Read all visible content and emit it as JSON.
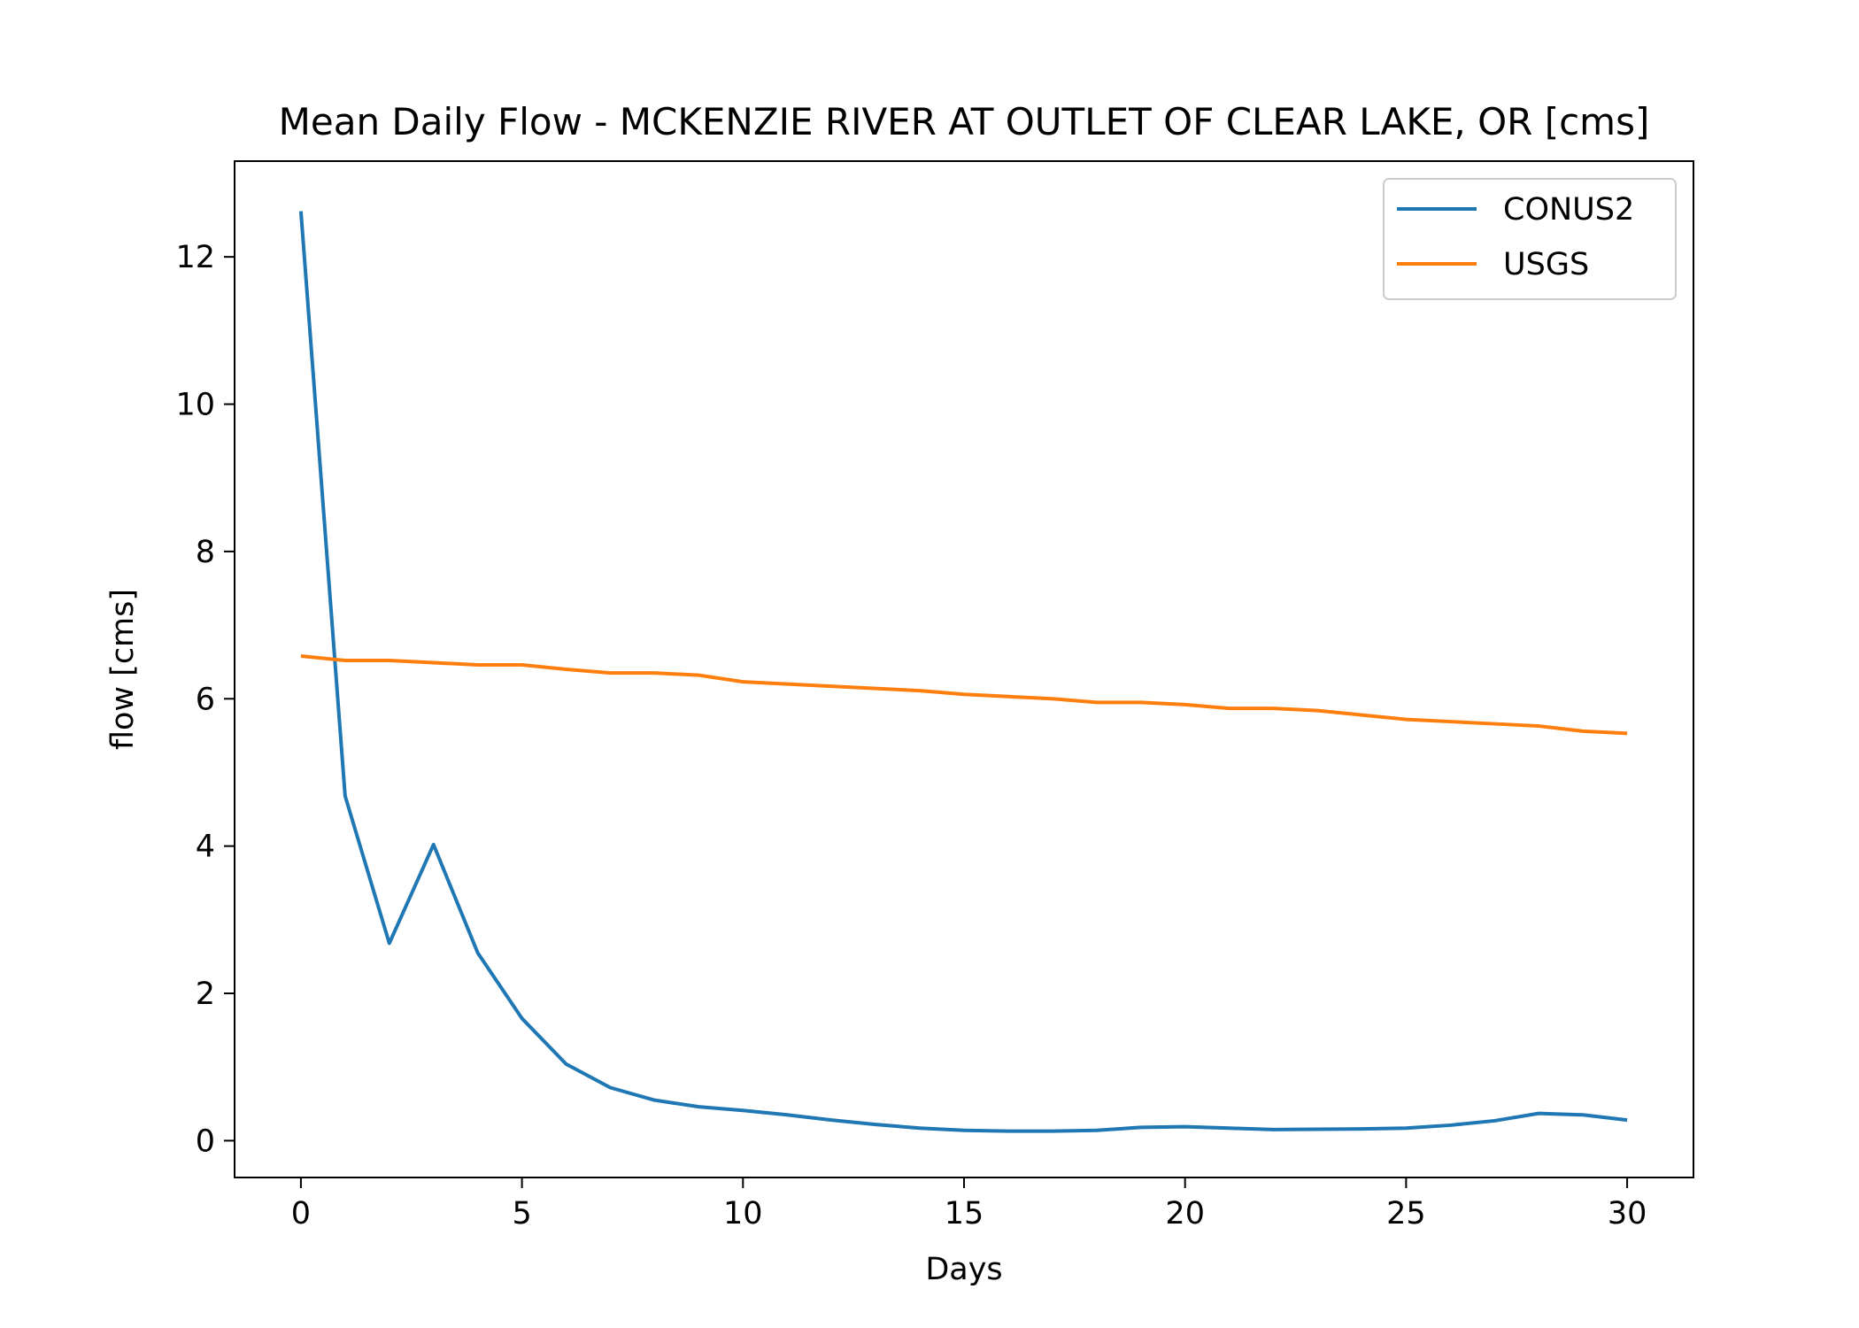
{
  "chart_data": {
    "type": "line",
    "title": "Mean Daily Flow - MCKENZIE RIVER AT OUTLET OF CLEAR LAKE, OR [cms]",
    "xlabel": "Days",
    "ylabel": "flow [cms]",
    "xlim": [
      -1.5,
      31.5
    ],
    "ylim": [
      -0.5,
      13.3
    ],
    "xticks": [
      0,
      5,
      10,
      15,
      20,
      25,
      30
    ],
    "yticks": [
      0,
      2,
      4,
      6,
      8,
      10,
      12
    ],
    "grid": false,
    "legend_position": "top-right",
    "x": [
      0,
      1,
      2,
      3,
      4,
      5,
      6,
      7,
      8,
      9,
      10,
      11,
      12,
      13,
      14,
      15,
      16,
      17,
      18,
      19,
      20,
      21,
      22,
      23,
      24,
      25,
      26,
      27,
      28,
      29,
      30
    ],
    "series": [
      {
        "name": "CONUS2",
        "color": "#1f77b4",
        "values": [
          12.62,
          4.68,
          2.68,
          4.02,
          2.55,
          1.66,
          1.04,
          0.72,
          0.55,
          0.46,
          0.41,
          0.35,
          0.28,
          0.22,
          0.17,
          0.14,
          0.13,
          0.13,
          0.14,
          0.18,
          0.19,
          0.17,
          0.15,
          0.155,
          0.16,
          0.17,
          0.21,
          0.27,
          0.37,
          0.35,
          0.28
        ]
      },
      {
        "name": "USGS",
        "color": "#ff7f0e",
        "values": [
          6.58,
          6.52,
          6.52,
          6.49,
          6.46,
          6.46,
          6.4,
          6.35,
          6.35,
          6.32,
          6.23,
          6.2,
          6.17,
          6.14,
          6.11,
          6.06,
          6.03,
          6.0,
          5.95,
          5.95,
          5.92,
          5.87,
          5.87,
          5.84,
          5.78,
          5.72,
          5.69,
          5.66,
          5.63,
          5.56,
          5.53
        ]
      }
    ]
  }
}
